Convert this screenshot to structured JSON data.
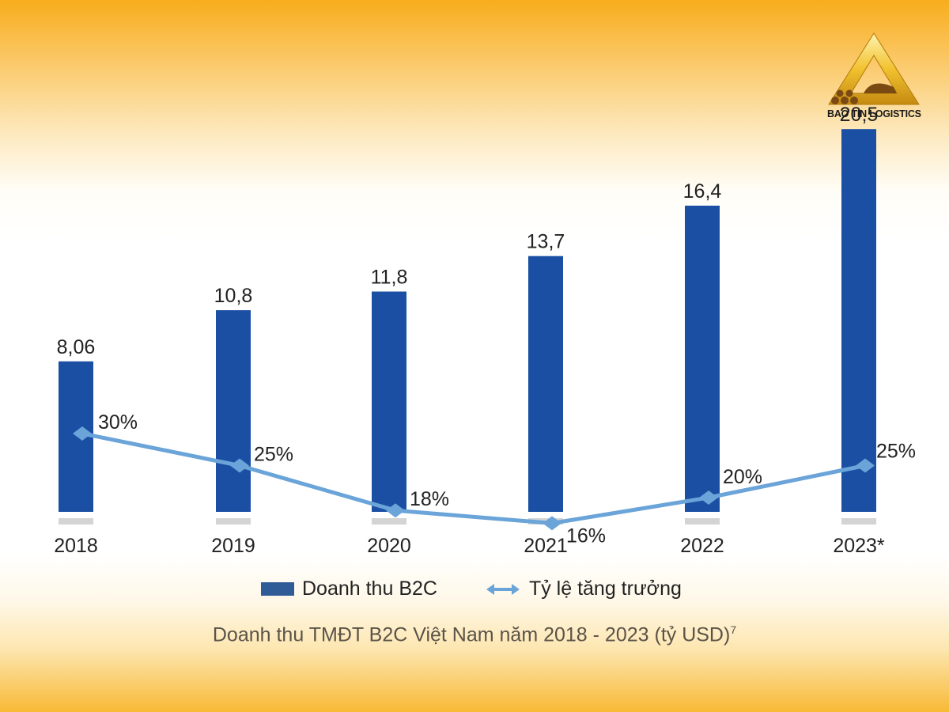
{
  "chart_data": {
    "type": "bar",
    "categories": [
      "2018",
      "2019",
      "2020",
      "2021",
      "2022",
      "2023*"
    ],
    "series": [
      {
        "name": "Doanh thu B2C",
        "type": "bar",
        "values": [
          8.06,
          10.8,
          11.8,
          13.7,
          16.4,
          20.5
        ],
        "labels": [
          "8,06",
          "10,8",
          "11,8",
          "13,7",
          "16,4",
          "20,5"
        ],
        "color": "#1a4fa3"
      },
      {
        "name": "Tỷ lệ tăng trưởng",
        "type": "line",
        "values": [
          30,
          25,
          18,
          16,
          20,
          25
        ],
        "labels": [
          "30%",
          "25%",
          "18%",
          "16%",
          "20%",
          "25%"
        ],
        "color": "#6aa4d8"
      }
    ],
    "title": "Doanh thu TMĐT B2C Việt Nam năm 2018 - 2023 (tỷ USD)",
    "title_superscript": "7",
    "legend_position": "bottom",
    "grid": false
  },
  "logo": {
    "text": "BAO TIN LOGISTICS"
  },
  "colors": {
    "bar": "#1a4fa3",
    "line": "#6aa4d8",
    "tick_mark": "#d4d4d4"
  }
}
